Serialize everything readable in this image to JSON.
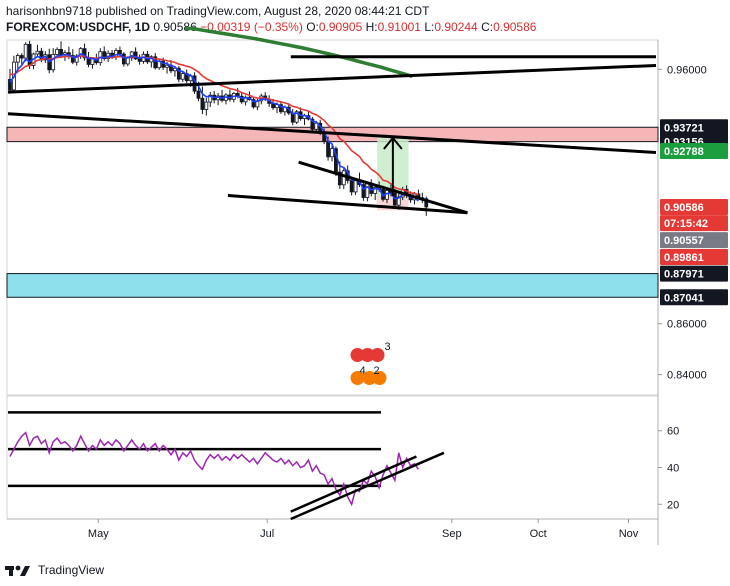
{
  "header": {
    "line1": "harisonhbn9718 published on TradingView.com, August 28, 2020 08:44:21 CDT",
    "symbol": "FOREXCOM:USDCHF, 1D",
    "last": "0.90586",
    "change": "−0.00319 (−0.35%)",
    "o_label": "O:",
    "o": "0.90905",
    "h_label": "H:",
    "h": "0.91001",
    "l_label": "L:",
    "l": "0.90244",
    "c_label": "C:",
    "c": "0.90586"
  },
  "footer": {
    "brand": "TradingView",
    "logo_icon": "tradingview-logo-icon"
  },
  "colors": {
    "up": "#26a69a",
    "down": "#ef5350",
    "ema_red": "#e53935",
    "ema_blue": "#1e40ff",
    "sma_green": "#2e7d32",
    "rsi": "#9c27b0",
    "resistance_zone": "#f4b6b6",
    "support_zone": "#8ee0ec",
    "target_box": "#c8ecc8",
    "stop_box": "#f8d0d0"
  },
  "chart_data": {
    "type": "candlestick",
    "symbol": "FOREXCOM:USDCHF",
    "timeframe": "1D",
    "price_axis": {
      "ylim": [
        0.832,
        0.9715
      ],
      "ticks": [
        "0.96000",
        "0.86000",
        "0.84000"
      ],
      "tick_values": [
        0.96,
        0.86,
        0.84
      ]
    },
    "x_axis": {
      "ticks": [
        "May",
        "Jul",
        "Sep",
        "Oct",
        "Nov"
      ],
      "tick_positions": [
        23,
        66,
        113,
        135,
        158
      ]
    },
    "price_tags": [
      {
        "label": "0.93721",
        "value": 0.93721,
        "bg": "#131722"
      },
      {
        "label": "0.93156",
        "value": 0.93156,
        "bg": "#131722"
      },
      {
        "label": "0.92788",
        "value": 0.92788,
        "bg": "#1b9e3e"
      },
      {
        "label": "0.90586",
        "value": 0.90586,
        "bg": "#e53935"
      },
      {
        "label": "07:15:42",
        "value": 0.89952,
        "bg": "#e53935"
      },
      {
        "label": "0.90557",
        "value": 0.89288,
        "bg": "#787b86"
      },
      {
        "label": "0.89861",
        "value": 0.88624,
        "bg": "#e53935"
      },
      {
        "label": "0.87971",
        "value": 0.87971,
        "bg": "#131722"
      },
      {
        "label": "0.87041",
        "value": 0.87041,
        "bg": "#131722"
      }
    ],
    "zones": [
      {
        "name": "resistance",
        "from": 0.93156,
        "to": 0.93721
      },
      {
        "name": "support",
        "from": 0.87041,
        "to": 0.87971
      }
    ],
    "trendlines": [
      {
        "x1": 0,
        "y1": 0.951,
        "x2": 165,
        "y2": 0.9615
      },
      {
        "x1": 0,
        "y1": 0.9425,
        "x2": 165,
        "y2": 0.9273
      },
      {
        "x1": 72,
        "y1": 0.9649,
        "x2": 165,
        "y2": 0.9649
      },
      {
        "x1": 56,
        "y1": 0.9104,
        "x2": 117,
        "y2": 0.9036
      },
      {
        "x1": 74,
        "y1": 0.9235,
        "x2": 117,
        "y2": 0.9036
      }
    ],
    "position": {
      "entry": 0.9102,
      "target": 0.9334,
      "stop": 0.9046,
      "x_from": 94,
      "x_to": 102
    },
    "candles": [
      {
        "o": 0.956,
        "h": 0.9601,
        "l": 0.9504,
        "c": 0.9519
      },
      {
        "o": 0.9519,
        "h": 0.9653,
        "l": 0.9507,
        "c": 0.9628
      },
      {
        "o": 0.9628,
        "h": 0.9662,
        "l": 0.9594,
        "c": 0.9654
      },
      {
        "o": 0.9654,
        "h": 0.9663,
        "l": 0.9618,
        "c": 0.9644
      },
      {
        "o": 0.9644,
        "h": 0.9706,
        "l": 0.9631,
        "c": 0.9698
      },
      {
        "o": 0.9698,
        "h": 0.9712,
        "l": 0.9601,
        "c": 0.9615
      },
      {
        "o": 0.9615,
        "h": 0.9665,
        "l": 0.96,
        "c": 0.966
      },
      {
        "o": 0.966,
        "h": 0.9696,
        "l": 0.9649,
        "c": 0.9671
      },
      {
        "o": 0.9671,
        "h": 0.9684,
        "l": 0.9628,
        "c": 0.9637
      },
      {
        "o": 0.9637,
        "h": 0.9671,
        "l": 0.9625,
        "c": 0.9657
      },
      {
        "o": 0.9657,
        "h": 0.9681,
        "l": 0.9584,
        "c": 0.9598
      },
      {
        "o": 0.9598,
        "h": 0.9683,
        "l": 0.9587,
        "c": 0.9658
      },
      {
        "o": 0.9658,
        "h": 0.9686,
        "l": 0.9647,
        "c": 0.9678
      },
      {
        "o": 0.9678,
        "h": 0.971,
        "l": 0.9644,
        "c": 0.9656
      },
      {
        "o": 0.9656,
        "h": 0.9675,
        "l": 0.9633,
        "c": 0.9665
      },
      {
        "o": 0.9665,
        "h": 0.9689,
        "l": 0.964,
        "c": 0.9654
      },
      {
        "o": 0.9654,
        "h": 0.9679,
        "l": 0.962,
        "c": 0.9628
      },
      {
        "o": 0.9628,
        "h": 0.966,
        "l": 0.9614,
        "c": 0.9652
      },
      {
        "o": 0.9652,
        "h": 0.9687,
        "l": 0.9641,
        "c": 0.9681
      },
      {
        "o": 0.9681,
        "h": 0.9701,
        "l": 0.9634,
        "c": 0.9645
      },
      {
        "o": 0.9645,
        "h": 0.9668,
        "l": 0.9608,
        "c": 0.9619
      },
      {
        "o": 0.9619,
        "h": 0.9647,
        "l": 0.9602,
        "c": 0.964
      },
      {
        "o": 0.964,
        "h": 0.9661,
        "l": 0.9618,
        "c": 0.9626
      },
      {
        "o": 0.9626,
        "h": 0.9683,
        "l": 0.9614,
        "c": 0.9669
      },
      {
        "o": 0.9669,
        "h": 0.969,
        "l": 0.9634,
        "c": 0.9642
      },
      {
        "o": 0.9642,
        "h": 0.9674,
        "l": 0.9629,
        "c": 0.9663
      },
      {
        "o": 0.9663,
        "h": 0.9676,
        "l": 0.964,
        "c": 0.9648
      },
      {
        "o": 0.9648,
        "h": 0.9683,
        "l": 0.9637,
        "c": 0.9674
      },
      {
        "o": 0.9674,
        "h": 0.9689,
        "l": 0.965,
        "c": 0.966
      },
      {
        "o": 0.966,
        "h": 0.9667,
        "l": 0.961,
        "c": 0.9621
      },
      {
        "o": 0.9621,
        "h": 0.9651,
        "l": 0.9612,
        "c": 0.9645
      },
      {
        "o": 0.9645,
        "h": 0.9672,
        "l": 0.9633,
        "c": 0.9668
      },
      {
        "o": 0.9668,
        "h": 0.9686,
        "l": 0.9636,
        "c": 0.9641
      },
      {
        "o": 0.9641,
        "h": 0.9658,
        "l": 0.9618,
        "c": 0.9631
      },
      {
        "o": 0.9631,
        "h": 0.967,
        "l": 0.9622,
        "c": 0.9659
      },
      {
        "o": 0.9659,
        "h": 0.9672,
        "l": 0.9621,
        "c": 0.9629
      },
      {
        "o": 0.9629,
        "h": 0.9655,
        "l": 0.9607,
        "c": 0.9649
      },
      {
        "o": 0.9649,
        "h": 0.9664,
        "l": 0.9599,
        "c": 0.9606
      },
      {
        "o": 0.9606,
        "h": 0.9642,
        "l": 0.9598,
        "c": 0.9632
      },
      {
        "o": 0.9632,
        "h": 0.9646,
        "l": 0.9597,
        "c": 0.9608
      },
      {
        "o": 0.9608,
        "h": 0.9629,
        "l": 0.9583,
        "c": 0.9616
      },
      {
        "o": 0.9616,
        "h": 0.9636,
        "l": 0.9585,
        "c": 0.9594
      },
      {
        "o": 0.9594,
        "h": 0.9612,
        "l": 0.9571,
        "c": 0.9604
      },
      {
        "o": 0.9604,
        "h": 0.9613,
        "l": 0.9549,
        "c": 0.9561
      },
      {
        "o": 0.9561,
        "h": 0.9594,
        "l": 0.955,
        "c": 0.9583
      },
      {
        "o": 0.9583,
        "h": 0.9599,
        "l": 0.9546,
        "c": 0.9555
      },
      {
        "o": 0.9555,
        "h": 0.9581,
        "l": 0.9531,
        "c": 0.9574
      },
      {
        "o": 0.9574,
        "h": 0.9588,
        "l": 0.9503,
        "c": 0.9514
      },
      {
        "o": 0.9514,
        "h": 0.9551,
        "l": 0.9475,
        "c": 0.9486
      },
      {
        "o": 0.9486,
        "h": 0.9532,
        "l": 0.9424,
        "c": 0.9442
      },
      {
        "o": 0.9442,
        "h": 0.9488,
        "l": 0.9418,
        "c": 0.9471
      },
      {
        "o": 0.9471,
        "h": 0.9511,
        "l": 0.9452,
        "c": 0.9498
      },
      {
        "o": 0.9498,
        "h": 0.9514,
        "l": 0.9466,
        "c": 0.948
      },
      {
        "o": 0.948,
        "h": 0.9507,
        "l": 0.9459,
        "c": 0.9495
      },
      {
        "o": 0.9495,
        "h": 0.9519,
        "l": 0.947,
        "c": 0.9478
      },
      {
        "o": 0.9478,
        "h": 0.9506,
        "l": 0.9462,
        "c": 0.9499
      },
      {
        "o": 0.9499,
        "h": 0.952,
        "l": 0.9473,
        "c": 0.9482
      },
      {
        "o": 0.9482,
        "h": 0.951,
        "l": 0.947,
        "c": 0.9505
      },
      {
        "o": 0.9505,
        "h": 0.9527,
        "l": 0.9486,
        "c": 0.9494
      },
      {
        "o": 0.9494,
        "h": 0.9507,
        "l": 0.9464,
        "c": 0.9472
      },
      {
        "o": 0.9472,
        "h": 0.9497,
        "l": 0.9458,
        "c": 0.949
      },
      {
        "o": 0.949,
        "h": 0.9513,
        "l": 0.9477,
        "c": 0.9481
      },
      {
        "o": 0.9481,
        "h": 0.9492,
        "l": 0.9445,
        "c": 0.9452
      },
      {
        "o": 0.9452,
        "h": 0.9483,
        "l": 0.9439,
        "c": 0.9476
      },
      {
        "o": 0.9476,
        "h": 0.9504,
        "l": 0.9462,
        "c": 0.9495
      },
      {
        "o": 0.9495,
        "h": 0.951,
        "l": 0.9475,
        "c": 0.9483
      },
      {
        "o": 0.9483,
        "h": 0.9498,
        "l": 0.9452,
        "c": 0.9466
      },
      {
        "o": 0.9466,
        "h": 0.9484,
        "l": 0.944,
        "c": 0.9449
      },
      {
        "o": 0.9449,
        "h": 0.947,
        "l": 0.9428,
        "c": 0.9461
      },
      {
        "o": 0.9461,
        "h": 0.9475,
        "l": 0.9425,
        "c": 0.9433
      },
      {
        "o": 0.9433,
        "h": 0.9458,
        "l": 0.9418,
        "c": 0.9451
      },
      {
        "o": 0.9451,
        "h": 0.9466,
        "l": 0.942,
        "c": 0.9428
      },
      {
        "o": 0.9428,
        "h": 0.9444,
        "l": 0.938,
        "c": 0.9392
      },
      {
        "o": 0.9392,
        "h": 0.944,
        "l": 0.9385,
        "c": 0.9433
      },
      {
        "o": 0.9433,
        "h": 0.945,
        "l": 0.9398,
        "c": 0.9406
      },
      {
        "o": 0.9406,
        "h": 0.9425,
        "l": 0.9381,
        "c": 0.9418
      },
      {
        "o": 0.9418,
        "h": 0.9436,
        "l": 0.9399,
        "c": 0.9404
      },
      {
        "o": 0.9404,
        "h": 0.9413,
        "l": 0.9356,
        "c": 0.9364
      },
      {
        "o": 0.9364,
        "h": 0.9397,
        "l": 0.9349,
        "c": 0.9388
      },
      {
        "o": 0.9388,
        "h": 0.9402,
        "l": 0.9341,
        "c": 0.9349
      },
      {
        "o": 0.9349,
        "h": 0.9368,
        "l": 0.9306,
        "c": 0.9318
      },
      {
        "o": 0.9318,
        "h": 0.9336,
        "l": 0.9241,
        "c": 0.9256
      },
      {
        "o": 0.9256,
        "h": 0.9304,
        "l": 0.9238,
        "c": 0.9288
      },
      {
        "o": 0.9288,
        "h": 0.9297,
        "l": 0.918,
        "c": 0.9196
      },
      {
        "o": 0.9196,
        "h": 0.9238,
        "l": 0.913,
        "c": 0.9146
      },
      {
        "o": 0.9146,
        "h": 0.9214,
        "l": 0.9129,
        "c": 0.9201
      },
      {
        "o": 0.9201,
        "h": 0.9222,
        "l": 0.9151,
        "c": 0.9163
      },
      {
        "o": 0.9163,
        "h": 0.9179,
        "l": 0.9104,
        "c": 0.9118
      },
      {
        "o": 0.9118,
        "h": 0.9173,
        "l": 0.9106,
        "c": 0.9162
      },
      {
        "o": 0.9162,
        "h": 0.9194,
        "l": 0.9138,
        "c": 0.9147
      },
      {
        "o": 0.9147,
        "h": 0.9163,
        "l": 0.9083,
        "c": 0.9096
      },
      {
        "o": 0.9096,
        "h": 0.9158,
        "l": 0.9081,
        "c": 0.915
      },
      {
        "o": 0.915,
        "h": 0.9168,
        "l": 0.9101,
        "c": 0.9112
      },
      {
        "o": 0.9112,
        "h": 0.9145,
        "l": 0.9086,
        "c": 0.9136
      },
      {
        "o": 0.9136,
        "h": 0.9159,
        "l": 0.9119,
        "c": 0.9128
      },
      {
        "o": 0.9128,
        "h": 0.9142,
        "l": 0.908,
        "c": 0.9089
      },
      {
        "o": 0.9089,
        "h": 0.9131,
        "l": 0.9074,
        "c": 0.9124
      },
      {
        "o": 0.9124,
        "h": 0.9147,
        "l": 0.91,
        "c": 0.9113
      },
      {
        "o": 0.9113,
        "h": 0.913,
        "l": 0.9052,
        "c": 0.9066
      },
      {
        "o": 0.9066,
        "h": 0.9112,
        "l": 0.9048,
        "c": 0.9098
      },
      {
        "o": 0.9098,
        "h": 0.9138,
        "l": 0.9086,
        "c": 0.9128
      },
      {
        "o": 0.9128,
        "h": 0.9144,
        "l": 0.9094,
        "c": 0.9105
      },
      {
        "o": 0.9105,
        "h": 0.912,
        "l": 0.9075,
        "c": 0.9087
      },
      {
        "o": 0.9087,
        "h": 0.9118,
        "l": 0.9069,
        "c": 0.911
      },
      {
        "o": 0.911,
        "h": 0.9127,
        "l": 0.9088,
        "c": 0.9095
      },
      {
        "o": 0.9095,
        "h": 0.9115,
        "l": 0.9074,
        "c": 0.9091
      },
      {
        "o": 0.9091,
        "h": 0.91,
        "l": 0.9024,
        "c": 0.9059
      }
    ],
    "ema_red": [
      0.958,
      0.958,
      0.959,
      0.96,
      0.9612,
      0.9615,
      0.9625,
      0.9635,
      0.9638,
      0.9642,
      0.964,
      0.9642,
      0.9646,
      0.9648,
      0.965,
      0.9651,
      0.9648,
      0.9648,
      0.9652,
      0.965,
      0.9646,
      0.9645,
      0.9643,
      0.9646,
      0.9646,
      0.9647,
      0.9647,
      0.9649,
      0.965,
      0.9647,
      0.9647,
      0.9649,
      0.9648,
      0.9646,
      0.9647,
      0.9645,
      0.9645,
      0.9641,
      0.964,
      0.9637,
      0.9634,
      0.963,
      0.9627,
      0.962,
      0.9617,
      0.9612,
      0.9608,
      0.9599,
      0.9589,
      0.9574,
      0.9563,
      0.9556,
      0.9548,
      0.9542,
      0.9535,
      0.953,
      0.9524,
      0.9521,
      0.9516,
      0.9508,
      0.9503,
      0.9498,
      0.949,
      0.9487,
      0.9487,
      0.9486,
      0.9483,
      0.9478,
      0.9476,
      0.9471,
      0.9468,
      0.9463,
      0.9454,
      0.9451,
      0.9444,
      0.944,
      0.9436,
      0.9427,
      0.9421,
      0.9411,
      0.9399,
      0.9381,
      0.937,
      0.935,
      0.9327,
      0.9317,
      0.9299,
      0.928,
      0.9269,
      0.9257,
      0.9235,
      0.9224,
      0.9207,
      0.9197,
      0.9184,
      0.9164,
      0.916,
      0.915,
      0.9135,
      0.913,
      0.9127,
      0.9122,
      0.9114,
      0.9113,
      0.9106
    ],
    "ema_blue": [
      0.955,
      0.957,
      0.96,
      0.9615,
      0.964,
      0.963,
      0.964,
      0.965,
      0.9645,
      0.965,
      0.963,
      0.964,
      0.9652,
      0.9654,
      0.9658,
      0.9656,
      0.9646,
      0.9648,
      0.966,
      0.9655,
      0.9643,
      0.9642,
      0.9637,
      0.9647,
      0.9645,
      0.9651,
      0.965,
      0.9657,
      0.9658,
      0.9645,
      0.9645,
      0.9653,
      0.9649,
      0.9643,
      0.9648,
      0.9641,
      0.9644,
      0.9632,
      0.9632,
      0.9624,
      0.9622,
      0.9613,
      0.961,
      0.9594,
      0.9591,
      0.9579,
      0.9577,
      0.9556,
      0.9533,
      0.9503,
      0.9492,
      0.9494,
      0.9489,
      0.9491,
      0.9487,
      0.9491,
      0.9488,
      0.9494,
      0.9494,
      0.9487,
      0.9488,
      0.9486,
      0.9473,
      0.9474,
      0.9483,
      0.9483,
      0.9477,
      0.9466,
      0.9464,
      0.9453,
      0.9452,
      0.9444,
      0.9425,
      0.9428,
      0.9419,
      0.9418,
      0.9413,
      0.9396,
      0.9393,
      0.9376,
      0.9356,
      0.9318,
      0.9307,
      0.9265,
      0.922,
      0.9214,
      0.9195,
      0.9165,
      0.9164,
      0.9158,
      0.9129,
      0.9138,
      0.9126,
      0.9131,
      0.913,
      0.9103,
      0.9112,
      0.9112,
      0.9091,
      0.9094,
      0.9107,
      0.9106,
      0.9098,
      0.9097,
      0.9082
    ],
    "sma_green": [
      0.976,
      0.976,
      0.9755,
      0.975,
      0.9745,
      0.974,
      0.9735,
      0.973,
      0.9725,
      0.972,
      0.9714,
      0.9708,
      0.9702,
      0.9696,
      0.969,
      0.9684,
      0.9677,
      0.967,
      0.9663,
      0.9656,
      0.9648,
      0.964,
      0.9632,
      0.9624,
      0.9616,
      0.9608,
      0.9599,
      0.959,
      0.9581,
      0.9572
    ],
    "sma_green_x_from": 45,
    "rsi": {
      "ticks": [
        "60",
        "40",
        "20"
      ],
      "tick_values": [
        60,
        40,
        20
      ],
      "ylim": [
        12,
        74
      ],
      "levels": [
        70,
        50,
        30
      ],
      "values": [
        46,
        50,
        54,
        57,
        59,
        52,
        56,
        57,
        53,
        55,
        48,
        54,
        56,
        53,
        54,
        52,
        49,
        52,
        57,
        53,
        49,
        52,
        50,
        55,
        52,
        54,
        52,
        55,
        53,
        49,
        52,
        55,
        52,
        50,
        53,
        49,
        51,
        53,
        49,
        52,
        50,
        47,
        50,
        44,
        48,
        46,
        49,
        44,
        41,
        39,
        44,
        47,
        45,
        47,
        44,
        46,
        44,
        47,
        45,
        47,
        45,
        43,
        45,
        42,
        45,
        48,
        46,
        44,
        43,
        45,
        42,
        44,
        41,
        43,
        40,
        41,
        44,
        38,
        41,
        37,
        36,
        31,
        34,
        28,
        25,
        31,
        24,
        20,
        28,
        27,
        33,
        31,
        38,
        35,
        29,
        36,
        41,
        37,
        33,
        48,
        40,
        45,
        41,
        42,
        39
      ],
      "trendlines": [
        {
          "x1": 72,
          "y1": 16,
          "x2": 104,
          "y2": 46
        },
        {
          "x1": 72,
          "y1": 12,
          "x2": 111,
          "y2": 48
        }
      ]
    },
    "event_badges": [
      {
        "label": "3",
        "x": 89
      },
      {
        "label": "4",
        "x": 89
      },
      {
        "label": "2",
        "x": 91
      }
    ]
  }
}
